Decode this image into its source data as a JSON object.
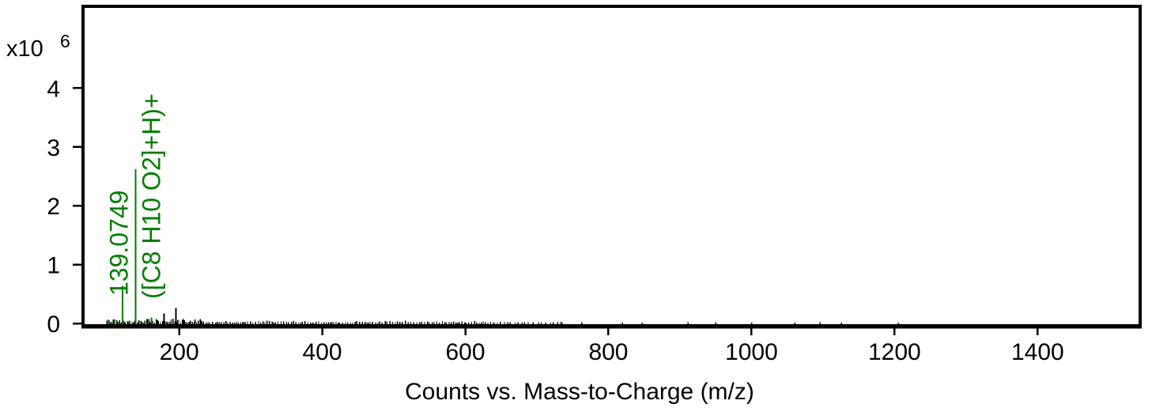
{
  "chart_data": {
    "type": "bar",
    "subtype": "mass-spectrum-stick-plot",
    "title": "",
    "xlabel": "Counts vs. Mass-to-Charge (m/z)",
    "ylabel": "",
    "y_axis": {
      "prefix": "x10",
      "exponent": "6",
      "ticks": [
        0,
        1,
        2,
        3,
        4
      ],
      "max": 5.35
    },
    "x_axis": {
      "min": 70,
      "max": 1540,
      "ticks": [
        200,
        400,
        600,
        800,
        1000,
        1200,
        1400
      ]
    },
    "legend": "none",
    "grid": false,
    "colors": {
      "matched_peak": "#007D00",
      "unmatched_peak": "#000000",
      "axis": "#000000",
      "background": "#FFFFFF"
    },
    "peaks": [
      {
        "mz": 102.0,
        "intensity_e6": 0.055,
        "color": "green"
      },
      {
        "mz": 110.0,
        "intensity_e6": 0.07,
        "color": "green"
      },
      {
        "mz": 121.07,
        "intensity_e6": 0.64,
        "color": "green"
      },
      {
        "mz": 130.0,
        "intensity_e6": 0.05,
        "color": "green"
      },
      {
        "mz": 139.0749,
        "intensity_e6": 2.62,
        "color": "green",
        "labeled": true
      },
      {
        "mz": 161.06,
        "intensity_e6": 0.1,
        "color": "green"
      },
      {
        "mz": 179.0,
        "intensity_e6": 0.17,
        "color": "black"
      },
      {
        "mz": 195.5,
        "intensity_e6": 0.26,
        "color": "black"
      }
    ],
    "annotations": {
      "mz_label": "139.0749",
      "formula_label": "([C8 H10 O2]+H)+"
    },
    "noise": {
      "seed": 42,
      "regions": [
        {
          "from": 99,
          "to": 232,
          "step": [
            1.2,
            3.0
          ],
          "height_e6": [
            0.015,
            0.08
          ]
        },
        {
          "from": 232,
          "to": 640,
          "step": [
            1.8,
            4.5
          ],
          "height_e6": [
            0.012,
            0.045
          ]
        },
        {
          "from": 640,
          "to": 735,
          "step": [
            3.0,
            8.0
          ],
          "height_e6": [
            0.012,
            0.028
          ]
        },
        {
          "from": 735,
          "to": 1240,
          "step": [
            25,
            80
          ],
          "height_e6": [
            0.012,
            0.02
          ]
        }
      ]
    }
  }
}
